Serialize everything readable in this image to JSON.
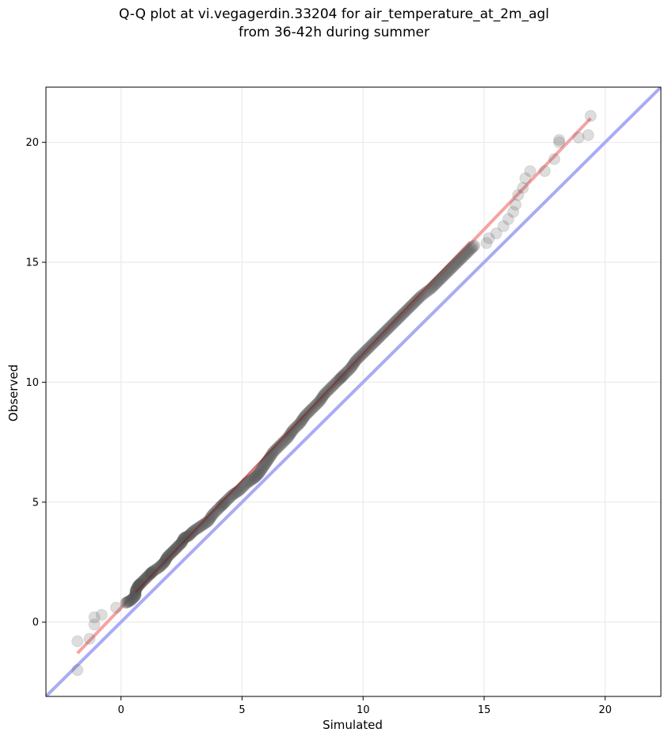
{
  "chart_data": {
    "type": "scatter",
    "title_line1": "Q-Q plot at vi.vegagerdin.33204 for air_temperature_at_2m_agl",
    "title_line2": "from 36-42h during summer",
    "xlabel": "Simulated",
    "ylabel": "Observed",
    "xlim": [
      -3.1,
      22.3
    ],
    "ylim": [
      -3.1,
      22.3
    ],
    "xticks": [
      0,
      5,
      10,
      15,
      20
    ],
    "yticks": [
      0,
      5,
      10,
      15,
      20
    ],
    "grid": true,
    "identity_line": {
      "from": [
        -3.1,
        -3.1
      ],
      "to": [
        22.3,
        22.3
      ],
      "color": "#aaaaf5"
    },
    "fit_line": {
      "from": [
        -1.8,
        -1.3
      ],
      "to": [
        19.4,
        21.0
      ],
      "color": "#f5a3a3"
    },
    "point_color": "#555555",
    "quantiles": [
      [
        -1.8,
        -2.0
      ],
      [
        -1.8,
        -0.8
      ],
      [
        -1.3,
        -0.7
      ],
      [
        -1.1,
        -0.1
      ],
      [
        -1.1,
        0.2
      ],
      [
        -0.8,
        0.3
      ],
      [
        -0.2,
        0.6
      ],
      [
        0.2,
        0.8
      ],
      [
        0.4,
        0.9
      ],
      [
        0.6,
        1.1
      ],
      [
        0.6,
        1.3
      ],
      [
        0.7,
        1.5
      ],
      [
        0.8,
        1.6
      ],
      [
        1.0,
        1.8
      ],
      [
        1.2,
        2.0
      ],
      [
        1.3,
        2.1
      ],
      [
        1.6,
        2.3
      ],
      [
        1.8,
        2.5
      ],
      [
        1.9,
        2.7
      ],
      [
        2.1,
        2.9
      ],
      [
        2.3,
        3.1
      ],
      [
        2.5,
        3.3
      ],
      [
        2.6,
        3.5
      ],
      [
        2.8,
        3.6
      ],
      [
        3.0,
        3.8
      ],
      [
        3.3,
        4.0
      ],
      [
        3.6,
        4.2
      ],
      [
        3.8,
        4.5
      ],
      [
        4.1,
        4.8
      ],
      [
        4.3,
        5.0
      ],
      [
        4.6,
        5.3
      ],
      [
        4.9,
        5.5
      ],
      [
        5.2,
        5.8
      ],
      [
        5.5,
        6.0
      ],
      [
        5.7,
        6.2
      ],
      [
        5.9,
        6.5
      ],
      [
        6.1,
        6.8
      ],
      [
        6.3,
        7.1
      ],
      [
        6.6,
        7.4
      ],
      [
        6.9,
        7.7
      ],
      [
        7.1,
        8.0
      ],
      [
        7.4,
        8.3
      ],
      [
        7.6,
        8.6
      ],
      [
        7.9,
        8.9
      ],
      [
        8.2,
        9.2
      ],
      [
        8.4,
        9.5
      ],
      [
        8.7,
        9.8
      ],
      [
        9.0,
        10.1
      ],
      [
        9.2,
        10.3
      ],
      [
        9.5,
        10.6
      ],
      [
        9.7,
        10.9
      ],
      [
        10.0,
        11.2
      ],
      [
        10.3,
        11.5
      ],
      [
        10.6,
        11.8
      ],
      [
        10.9,
        12.1
      ],
      [
        11.2,
        12.4
      ],
      [
        11.5,
        12.7
      ],
      [
        11.8,
        13.0
      ],
      [
        12.1,
        13.3
      ],
      [
        12.4,
        13.6
      ],
      [
        12.8,
        13.9
      ],
      [
        13.1,
        14.2
      ],
      [
        13.4,
        14.5
      ],
      [
        13.7,
        14.8
      ],
      [
        14.0,
        15.1
      ],
      [
        14.3,
        15.4
      ],
      [
        14.6,
        15.7
      ],
      [
        15.1,
        15.8
      ],
      [
        15.2,
        16.0
      ],
      [
        15.5,
        16.2
      ],
      [
        15.8,
        16.5
      ],
      [
        16.0,
        16.8
      ],
      [
        16.2,
        17.1
      ],
      [
        16.3,
        17.4
      ],
      [
        16.4,
        17.8
      ],
      [
        16.6,
        18.1
      ],
      [
        16.7,
        18.5
      ],
      [
        16.9,
        18.8
      ],
      [
        17.5,
        18.8
      ],
      [
        17.9,
        19.3
      ],
      [
        18.1,
        20.0
      ],
      [
        18.1,
        20.1
      ],
      [
        18.9,
        20.2
      ],
      [
        19.3,
        20.3
      ],
      [
        19.4,
        21.1
      ]
    ]
  }
}
